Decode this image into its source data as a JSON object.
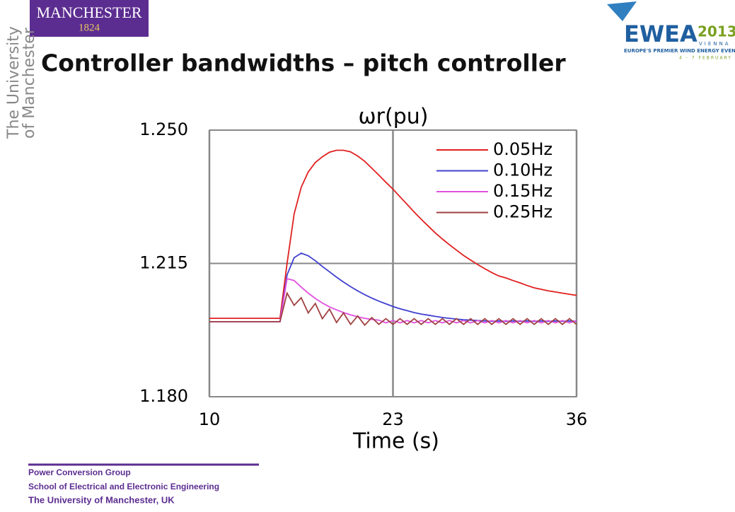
{
  "slide": {
    "logo_left": {
      "name": "MANCHESTER",
      "year": "1824"
    },
    "side_text": [
      "The University",
      "of Manchester"
    ],
    "logo_right": {
      "name": "EWEA",
      "year": "2013",
      "city": "VIENNA",
      "tagline": "EUROPE'S PREMIER WIND ENERGY EVENT",
      "dates": "4 - 7 FEBRUARY"
    },
    "heading": "Controller bandwidths – pitch controller",
    "footer": [
      "Power Conversion Group",
      "School of Electrical and Electronic Engineering",
      "The University  of Manchester,  UK"
    ]
  },
  "chart_data": {
    "type": "line",
    "title": "ωr(pu)",
    "x_label": "Time (s)",
    "xlim": [
      10,
      36
    ],
    "xticks": [
      10,
      23,
      36
    ],
    "ylim": [
      1.18,
      1.25
    ],
    "yticks": [
      {
        "value": 1.25,
        "label": "1.250"
      },
      {
        "value": 1.215,
        "label": "1.215"
      },
      {
        "value": 1.18,
        "label": "1.180"
      }
    ],
    "grid": true,
    "legend": "upper right",
    "x": [
      10,
      10.5,
      11,
      11.5,
      12,
      12.5,
      13,
      13.5,
      14,
      14.5,
      15,
      15.5,
      16,
      16.5,
      17,
      17.5,
      18,
      18.5,
      19,
      19.5,
      20,
      20.5,
      21,
      21.5,
      22,
      22.5,
      23,
      23.5,
      24,
      24.5,
      25,
      25.5,
      26,
      26.5,
      27,
      27.5,
      28,
      28.5,
      29,
      29.5,
      30,
      30.5,
      31,
      31.5,
      32,
      32.5,
      33,
      33.5,
      34,
      34.5,
      35,
      35.5,
      36
    ],
    "series": [
      {
        "name": "0.05Hz",
        "color": "#e02020",
        "values": [
          1.2006,
          1.2006,
          1.2006,
          1.2006,
          1.2006,
          1.2006,
          1.2006,
          1.2006,
          1.2006,
          1.2006,
          1.2006,
          1.215,
          1.228,
          1.235,
          1.239,
          1.2415,
          1.243,
          1.2442,
          1.2447,
          1.2447,
          1.2443,
          1.2432,
          1.2418,
          1.24,
          1.2382,
          1.2363,
          1.2345,
          1.2325,
          1.2305,
          1.2285,
          1.2266,
          1.2248,
          1.223,
          1.2214,
          1.2199,
          1.2185,
          1.2171,
          1.2159,
          1.2147,
          1.2136,
          1.2126,
          1.2117,
          1.2112,
          1.2105,
          1.2099,
          1.2092,
          1.2086,
          1.2082,
          1.2078,
          1.2075,
          1.2072,
          1.2069,
          1.2066
        ]
      },
      {
        "name": "0.10Hz",
        "color": "#4040d0",
        "values": [
          1.1997,
          1.1997,
          1.1997,
          1.1997,
          1.1997,
          1.1997,
          1.1997,
          1.1997,
          1.1997,
          1.1997,
          1.1997,
          1.212,
          1.2165,
          1.2177,
          1.217,
          1.2157,
          1.2142,
          1.2128,
          1.2114,
          1.2101,
          1.2089,
          1.2078,
          1.2068,
          1.2059,
          1.2051,
          1.2044,
          1.2037,
          1.2031,
          1.2026,
          1.2021,
          1.2017,
          1.2014,
          1.2011,
          1.2008,
          1.2006,
          1.2004,
          1.2002,
          1.2001,
          1.2,
          1.1999,
          1.1998,
          1.1999,
          1.1998,
          1.1999,
          1.1998,
          1.1999,
          1.1998,
          1.1999,
          1.1998,
          1.1999,
          1.1998,
          1.1999,
          1.1998
        ]
      },
      {
        "name": "0.15Hz",
        "color": "#e050e0",
        "values": [
          1.1997,
          1.1997,
          1.1997,
          1.1997,
          1.1997,
          1.1997,
          1.1997,
          1.1997,
          1.1997,
          1.1997,
          1.1997,
          1.211,
          1.2105,
          1.2088,
          1.2072,
          1.2058,
          1.2046,
          1.2036,
          1.2028,
          1.2021,
          1.2015,
          1.201,
          1.2006,
          1.2003,
          1.2001,
          1.1994,
          1.2,
          1.1994,
          1.2,
          1.1994,
          1.2,
          1.1994,
          1.2,
          1.1994,
          1.2,
          1.1994,
          1.2,
          1.1994,
          1.2,
          1.1994,
          1.2,
          1.1994,
          1.2,
          1.1994,
          1.2,
          1.1994,
          1.2,
          1.1994,
          1.2,
          1.1994,
          1.2,
          1.1994,
          1.2
        ]
      },
      {
        "name": "0.25Hz",
        "color": "#a04040",
        "values": [
          1.1997,
          1.1997,
          1.1997,
          1.1997,
          1.1997,
          1.1997,
          1.1997,
          1.1997,
          1.1997,
          1.1997,
          1.1997,
          1.2072,
          1.204,
          1.206,
          1.202,
          1.2045,
          1.2005,
          1.203,
          1.1995,
          1.202,
          1.199,
          1.2012,
          1.1988,
          1.2008,
          1.199,
          1.2005,
          1.199,
          1.2005,
          1.199,
          1.2005,
          1.199,
          1.2005,
          1.199,
          1.2005,
          1.199,
          1.2005,
          1.199,
          1.2005,
          1.199,
          1.2005,
          1.199,
          1.2005,
          1.199,
          1.2005,
          1.199,
          1.2005,
          1.199,
          1.2005,
          1.199,
          1.2005,
          1.199,
          1.2005,
          1.199
        ]
      }
    ]
  }
}
